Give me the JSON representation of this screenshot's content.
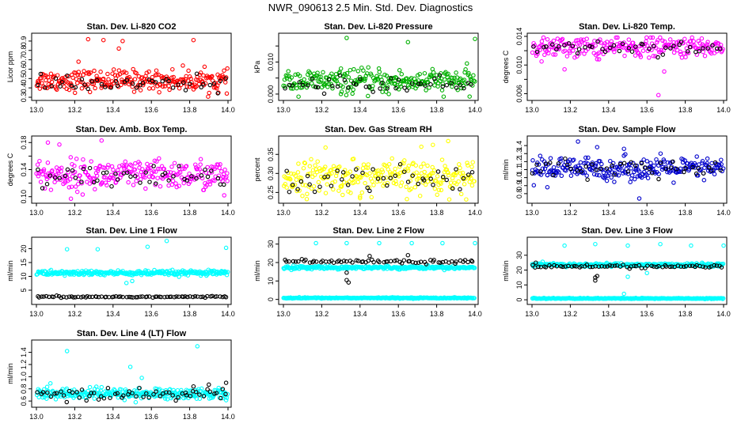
{
  "title": "NWR_090613  2.5 Min. Std. Dev. Diagnostics",
  "chart_data": [
    {
      "type": "scatter",
      "title": "Stan. Dev. Li-820 CO2",
      "ylabel": "Licor ppm",
      "xlim": [
        13.0,
        14.0
      ],
      "ylim": [
        0.3,
        0.95
      ],
      "xticks": [
        "13.0",
        "13.2",
        "13.4",
        "13.6",
        "13.8",
        "14.0"
      ],
      "yticks": [
        0.3,
        0.4,
        0.5,
        0.6,
        0.7,
        0.8,
        0.9
      ],
      "ytick_labels": [
        "0.3",
        "0.4",
        "0.5",
        "0.6",
        "0.7",
        "0.8",
        "0.9"
      ],
      "series": [
        {
          "name": "main",
          "color": "#ff0000",
          "center": 0.48,
          "spread": 0.055,
          "n": 260,
          "outliers": [
            [
              13.27,
              0.92
            ],
            [
              13.35,
              0.91
            ],
            [
              13.43,
              0.82
            ],
            [
              13.45,
              0.9
            ],
            [
              13.82,
              0.91
            ],
            [
              13.22,
              0.68
            ],
            [
              13.95,
              0.35
            ]
          ]
        },
        {
          "name": "alt",
          "color": "#000000",
          "center": 0.44,
          "spread": 0.04,
          "n": 45,
          "outliers": []
        }
      ]
    },
    {
      "type": "scatter",
      "title": "Stan. Dev. Li-820 Pressure",
      "ylabel": "kPa",
      "xlim": [
        13.0,
        14.0
      ],
      "ylim": [
        -0.001,
        0.018
      ],
      "xticks": [
        "13.0",
        "13.2",
        "13.4",
        "13.6",
        "13.8",
        "14.0"
      ],
      "yticks": [
        0.0,
        0.005,
        0.01,
        0.015
      ],
      "ytick_labels": [
        "0.000",
        "",
        "0.010",
        ""
      ],
      "series": [
        {
          "name": "main",
          "color": "#00b000",
          "center": 0.004,
          "spread": 0.0018,
          "n": 260,
          "outliers": [
            [
              13.33,
              0.0175
            ],
            [
              13.65,
              0.0162
            ],
            [
              14.0,
              0.0172
            ],
            [
              13.3,
              0.0
            ],
            [
              13.55,
              0.0
            ]
          ]
        },
        {
          "name": "alt",
          "color": "#000000",
          "center": 0.003,
          "spread": 0.0012,
          "n": 45,
          "outliers": []
        }
      ]
    },
    {
      "type": "scatter",
      "title": "Stan. Dev. Li-820 Temp.",
      "ylabel": "degrees C",
      "xlim": [
        13.0,
        14.0
      ],
      "ylim": [
        0.0055,
        0.014
      ],
      "xticks": [
        "13.0",
        "13.2",
        "13.4",
        "13.6",
        "13.8",
        "14.0"
      ],
      "yticks": [
        0.006,
        0.008,
        0.01,
        0.012,
        0.014
      ],
      "ytick_labels": [
        "0.006",
        "",
        "0.010",
        "",
        "0.014"
      ],
      "series": [
        {
          "name": "main",
          "color": "#ff00ff",
          "center": 0.0125,
          "spread": 0.0007,
          "n": 240,
          "outliers": [
            [
              13.66,
              0.0058
            ],
            [
              13.69,
              0.0091
            ],
            [
              13.17,
              0.0094
            ],
            [
              13.05,
              0.0105
            ],
            [
              13.35,
              0.0108
            ]
          ]
        },
        {
          "name": "alt",
          "color": "#000000",
          "center": 0.0125,
          "spread": 0.0005,
          "n": 45,
          "outliers": []
        }
      ]
    },
    {
      "type": "scatter",
      "title": "Stan. Dev. Amb. Box Temp.",
      "ylabel": "degrees C",
      "xlim": [
        13.0,
        14.0
      ],
      "ylim": [
        0.095,
        0.185
      ],
      "xticks": [
        "13.0",
        "13.2",
        "13.4",
        "13.6",
        "13.8",
        "14.0"
      ],
      "yticks": [
        0.1,
        0.12,
        0.14,
        0.16,
        0.18
      ],
      "ytick_labels": [
        "0.10",
        "",
        "0.14",
        "",
        "0.18"
      ],
      "series": [
        {
          "name": "main",
          "color": "#ff00ff",
          "center": 0.132,
          "spread": 0.011,
          "n": 260,
          "outliers": [
            [
              13.34,
              0.183
            ],
            [
              13.06,
              0.18
            ],
            [
              13.12,
              0.177
            ],
            [
              13.18,
              0.097
            ],
            [
              13.98,
              0.102
            ]
          ]
        },
        {
          "name": "alt",
          "color": "#000000",
          "center": 0.127,
          "spread": 0.008,
          "n": 45,
          "outliers": []
        }
      ]
    },
    {
      "type": "scatter",
      "title": "Stan. Dev. Gas Stream RH",
      "ylabel": "percent",
      "xlim": [
        13.0,
        14.0
      ],
      "ylim": [
        0.23,
        0.39
      ],
      "xticks": [
        "13.0",
        "13.2",
        "13.4",
        "13.6",
        "13.8",
        "14.0"
      ],
      "yticks": [
        0.25,
        0.3,
        0.35
      ],
      "ytick_labels": [
        "0.25",
        "0.30",
        "0.35"
      ],
      "series": [
        {
          "name": "main",
          "color": "#ffff00",
          "center": 0.29,
          "spread": 0.022,
          "n": 260,
          "outliers": [
            [
              13.86,
              0.385
            ],
            [
              13.78,
              0.375
            ],
            [
              13.72,
              0.37
            ],
            [
              13.22,
              0.368
            ],
            [
              13.4,
              0.235
            ]
          ]
        },
        {
          "name": "alt",
          "color": "#000000",
          "center": 0.29,
          "spread": 0.018,
          "n": 45,
          "outliers": []
        }
      ]
    },
    {
      "type": "scatter",
      "title": "Stan. Dev. Sample Flow",
      "ylabel": "ml/min",
      "xlim": [
        13.0,
        14.0
      ],
      "ylim": [
        0.72,
        1.48
      ],
      "xticks": [
        "13.0",
        "13.2",
        "13.4",
        "13.6",
        "13.8",
        "14.0"
      ],
      "yticks": [
        0.8,
        0.9,
        1.0,
        1.1,
        1.2,
        1.3,
        1.4
      ],
      "ytick_labels": [
        "0.8",
        "0.9",
        "1.0",
        "1.1",
        "1.2",
        "1.3",
        "1.4"
      ],
      "series": [
        {
          "name": "main",
          "color": "#0000cc",
          "center": 1.11,
          "spread": 0.07,
          "n": 260,
          "outliers": [
            [
              13.24,
              1.45
            ],
            [
              13.56,
              0.74
            ],
            [
              13.48,
              1.36
            ],
            [
              13.34,
              1.38
            ],
            [
              13.08,
              0.88
            ]
          ]
        },
        {
          "name": "alt",
          "color": "#000000",
          "center": 1.12,
          "spread": 0.06,
          "n": 45,
          "outliers": []
        }
      ]
    },
    {
      "type": "scatter",
      "title": "Stan. Dev. Line 1 Flow",
      "ylabel": "ml/min",
      "xlim": [
        13.0,
        14.0
      ],
      "ylim": [
        1.0,
        23.0
      ],
      "xticks": [
        "13.0",
        "13.2",
        "13.4",
        "13.6",
        "13.8",
        "14.0"
      ],
      "yticks": [
        5,
        10,
        15,
        20
      ],
      "ytick_labels": [
        "5",
        "10",
        "15",
        "20"
      ],
      "series": [
        {
          "name": "main",
          "color": "#00ffff",
          "center": 11.2,
          "spread": 0.45,
          "n": 280,
          "outliers": [
            [
              13.16,
              19.8
            ],
            [
              13.32,
              19.8
            ],
            [
              13.58,
              20.7
            ],
            [
              13.68,
              22.8
            ],
            [
              13.99,
              20.3
            ],
            [
              13.47,
              7.6
            ],
            [
              13.5,
              8.3
            ]
          ]
        },
        {
          "name": "alt",
          "color": "#000000",
          "center": 2.6,
          "spread": 0.15,
          "n": 80,
          "outliers": []
        }
      ]
    },
    {
      "type": "scatter",
      "title": "Stan. Dev. Line 2 Flow",
      "ylabel": "ml/min",
      "xlim": [
        13.0,
        14.0
      ],
      "ylim": [
        -1.0,
        32.0
      ],
      "xticks": [
        "13.0",
        "13.2",
        "13.4",
        "13.6",
        "13.8",
        "14.0"
      ],
      "yticks": [
        0,
        10,
        20,
        30
      ],
      "ytick_labels": [
        "0",
        "10",
        "20",
        "30"
      ],
      "series": [
        {
          "name": "main",
          "color": "#00ffff",
          "center": 17.3,
          "spread": 0.4,
          "n": 280,
          "outliers": [
            [
              13.17,
              30.5
            ],
            [
              13.33,
              30.5
            ],
            [
              13.5,
              30.5
            ],
            [
              13.67,
              30.5
            ],
            [
              13.83,
              30.5
            ],
            [
              14.0,
              30.5
            ]
          ]
        },
        {
          "name": "baseline",
          "color": "#00ffff",
          "center": 0.8,
          "spread": 0.15,
          "n": 280,
          "outliers": []
        },
        {
          "name": "alt",
          "color": "#000000",
          "center": 20.5,
          "spread": 0.5,
          "n": 70,
          "outliers": [
            [
              13.33,
              10.5
            ],
            [
              13.33,
              14.5
            ],
            [
              13.34,
              9.2
            ],
            [
              13.45,
              23.5
            ],
            [
              13.65,
              24.0
            ]
          ]
        }
      ]
    },
    {
      "type": "scatter",
      "title": "Stan. Dev. Line 3 Flow",
      "ylabel": "ml/min",
      "xlim": [
        13.0,
        14.0
      ],
      "ylim": [
        -1.0,
        40.0
      ],
      "xticks": [
        "13.0",
        "13.2",
        "13.4",
        "13.6",
        "13.8",
        "14.0"
      ],
      "yticks": [
        0,
        10,
        20,
        30
      ],
      "ytick_labels": [
        "0",
        "10",
        "20",
        "30"
      ],
      "series": [
        {
          "name": "main",
          "color": "#00ffff",
          "center": 23.5,
          "spread": 0.6,
          "n": 280,
          "outliers": [
            [
              13.17,
              36.5
            ],
            [
              13.33,
              37.5
            ],
            [
              13.5,
              36.5
            ],
            [
              13.67,
              37.5
            ],
            [
              13.83,
              36.5
            ],
            [
              14.0,
              36.5
            ],
            [
              13.48,
              4.0
            ],
            [
              13.5,
              15.5
            ],
            [
              13.6,
              18.0
            ]
          ]
        },
        {
          "name": "baseline",
          "color": "#00ffff",
          "center": 0.9,
          "spread": 0.15,
          "n": 280,
          "outliers": []
        },
        {
          "name": "alt",
          "color": "#000000",
          "center": 22.5,
          "spread": 0.5,
          "n": 70,
          "outliers": [
            [
              13.33,
              13.0
            ],
            [
              13.33,
              15.0
            ],
            [
              13.34,
              16.0
            ],
            [
              13.02,
              25.0
            ]
          ]
        }
      ]
    },
    {
      "type": "scatter",
      "title": "Stan. Dev. Line 4 (LT) Flow",
      "ylabel": "ml/min",
      "xlim": [
        13.0,
        14.0
      ],
      "ylim": [
        0.55,
        1.55
      ],
      "xticks": [
        "13.0",
        "13.2",
        "13.4",
        "13.6",
        "13.8",
        "14.0"
      ],
      "yticks": [
        0.6,
        0.8,
        1.0,
        1.2,
        1.4
      ],
      "ytick_labels": [
        "0.6",
        "0.8",
        "1.0",
        "1.2",
        "1.4"
      ],
      "series": [
        {
          "name": "main",
          "color": "#00ffff",
          "center": 0.72,
          "spread": 0.045,
          "n": 280,
          "outliers": [
            [
              13.16,
              1.42
            ],
            [
              13.49,
              1.16
            ],
            [
              13.84,
              1.5
            ],
            [
              13.55,
              0.98
            ]
          ]
        },
        {
          "name": "alt",
          "color": "#000000",
          "center": 0.71,
          "spread": 0.05,
          "n": 60,
          "outliers": [
            [
              13.9,
              0.87
            ],
            [
              13.99,
              0.9
            ],
            [
              13.82,
              0.84
            ]
          ]
        }
      ]
    }
  ]
}
